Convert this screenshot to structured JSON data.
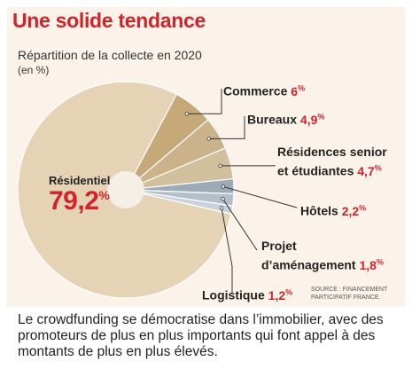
{
  "header": {
    "title": "Une solide tendance",
    "subtitle": "Répartition de la collecte en 2020",
    "unit": "(en %)"
  },
  "labels": {
    "residentiel": {
      "name": "Résidentiel",
      "value": "79,2",
      "unit": "%"
    },
    "commerce": {
      "name": "Commerce",
      "value": "6",
      "unit": "%"
    },
    "bureaux": {
      "name": "Bureaux",
      "value": "4,9",
      "unit": "%"
    },
    "residences_line1": "Résidences senior",
    "residences_line2": "et étudiantes",
    "residences_value": "4,7",
    "residences_unit": "%",
    "hotels": {
      "name": "Hôtels",
      "value": "2,2",
      "unit": "%"
    },
    "projet_line1": "Projet",
    "projet_line2": "d’aménagement",
    "projet_value": "1,8",
    "projet_unit": "%",
    "logistique": {
      "name": "Logistique",
      "value": "1,2",
      "unit": "%"
    }
  },
  "source": "SOURCE : FINANCEMENT PARTICIPATIF FRANCE.",
  "caption": "Le crowdfunding se démocratise dans l’immobilier, avec des promoteurs de plus en plus importants qui font appel à des montants de plus en plus élevés.",
  "chart_data": {
    "type": "pie",
    "title": "Une solide tendance",
    "subtitle": "Répartition de la collecte en 2020",
    "unit": "%",
    "categories": [
      "Résidentiel",
      "Commerce",
      "Bureaux",
      "Résidences senior et étudiantes",
      "Hôtels",
      "Projet d’aménagement",
      "Logistique"
    ],
    "values": [
      79.2,
      6,
      4.9,
      4.7,
      2.2,
      1.8,
      1.2
    ],
    "colors": [
      "#e6d3b5",
      "#c6a979",
      "#cbb28a",
      "#d2bf9d",
      "#9cabb7",
      "#b3c0ca",
      "#c9d2da"
    ]
  }
}
